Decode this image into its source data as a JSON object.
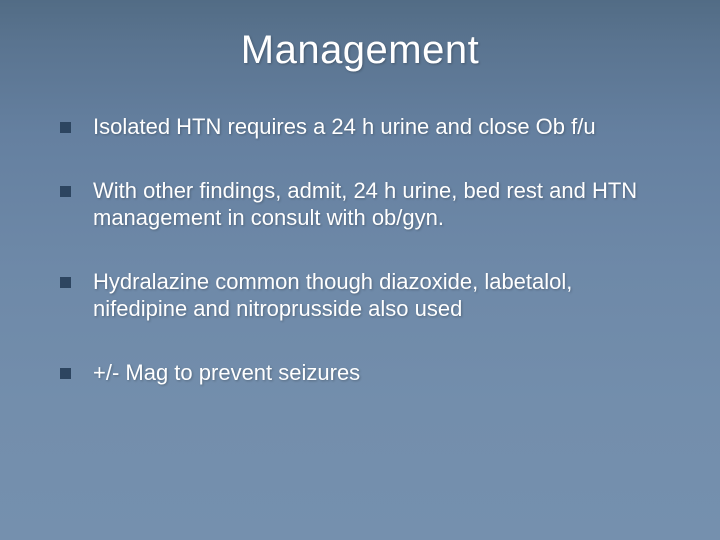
{
  "slide": {
    "title": "Management",
    "background_gradient_top": "#526c85",
    "background_gradient_bottom": "#7590ae",
    "title_color": "#ffffff",
    "title_fontsize": 40,
    "text_color": "#ffffff",
    "text_fontsize": 22,
    "bullet_color": "#2d4560",
    "bullet_size": 11,
    "bullets": [
      {
        "text": "Isolated HTN requires a 24 h urine and close Ob f/u"
      },
      {
        "text": "With other findings, admit, 24 h urine, bed rest and HTN management in consult with ob/gyn."
      },
      {
        "text": "Hydralazine common though diazoxide, labetalol, nifedipine and nitroprusside also used"
      },
      {
        "text": "+/- Mag to prevent seizures"
      }
    ]
  }
}
